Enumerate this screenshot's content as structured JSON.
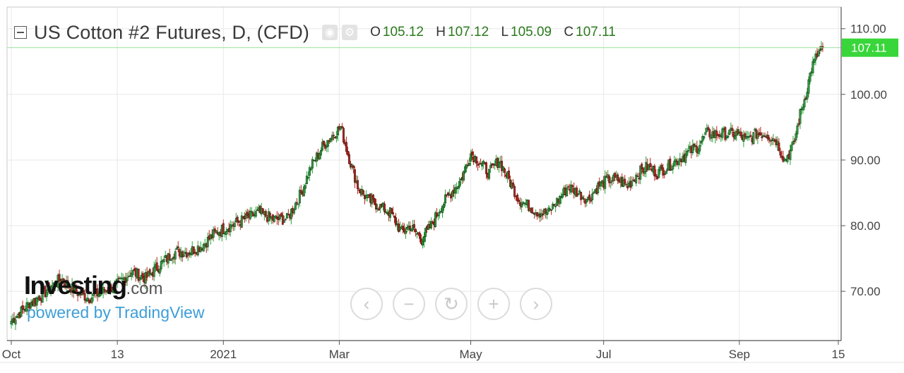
{
  "header": {
    "title": "US Cotton #2 Futures, D, (CFD)",
    "ohlc": {
      "o_label": "O",
      "o_value": "105.12",
      "h_label": "H",
      "h_value": "107.12",
      "l_label": "L",
      "l_value": "105.09",
      "c_label": "C",
      "c_value": "107.11"
    },
    "icons": [
      "eye-icon",
      "gear-icon"
    ]
  },
  "branding": {
    "logo_main": "Investing",
    "logo_domain": ".com",
    "powered_by": "powered by TradingView"
  },
  "navigation": {
    "buttons": [
      {
        "name": "scroll-left",
        "glyph": "‹"
      },
      {
        "name": "zoom-out",
        "glyph": "−"
      },
      {
        "name": "reset",
        "glyph": "↻"
      },
      {
        "name": "zoom-in",
        "glyph": "+"
      },
      {
        "name": "scroll-right",
        "glyph": "›"
      }
    ]
  },
  "colors": {
    "up": "#27a338",
    "down": "#b8211b",
    "last_price_bg": "#38d63a",
    "last_price_line": "#9be39b",
    "grid": "#e8e8e8"
  },
  "chart_data": {
    "type": "candlestick",
    "title": "US Cotton #2 Futures, D, (CFD)",
    "last_price": 107.11,
    "last_price_label": "107.11",
    "y_ticks": [
      {
        "value": 110,
        "label": "110.00"
      },
      {
        "value": 100,
        "label": "100.00"
      },
      {
        "value": 90,
        "label": "90.00"
      },
      {
        "value": 80,
        "label": "80.00"
      },
      {
        "value": 70,
        "label": "70.00"
      }
    ],
    "y_range": [
      62.5,
      113.3
    ],
    "x_ticks": [
      {
        "label": "Oct",
        "index": 0
      },
      {
        "label": "13",
        "index": 75
      },
      {
        "label": "2021",
        "index": 150
      },
      {
        "label": "Mar",
        "index": 232
      },
      {
        "label": "May",
        "index": 325
      },
      {
        "label": "Jul",
        "index": 419
      },
      {
        "label": "Sep",
        "index": 515
      },
      {
        "label": "15",
        "index": 585
      }
    ],
    "x_index_range": [
      -3,
      587
    ],
    "grid": true,
    "key_points": [
      [
        0,
        65.5
      ],
      [
        12,
        68
      ],
      [
        25,
        70
      ],
      [
        35,
        72
      ],
      [
        45,
        70
      ],
      [
        55,
        69
      ],
      [
        65,
        70
      ],
      [
        75,
        71
      ],
      [
        85,
        73
      ],
      [
        95,
        72
      ],
      [
        105,
        74
      ],
      [
        115,
        76
      ],
      [
        125,
        76
      ],
      [
        135,
        77
      ],
      [
        145,
        79
      ],
      [
        155,
        80
      ],
      [
        165,
        81
      ],
      [
        175,
        82
      ],
      [
        185,
        81
      ],
      [
        195,
        81
      ],
      [
        205,
        85
      ],
      [
        212,
        89
      ],
      [
        220,
        92
      ],
      [
        228,
        94
      ],
      [
        233,
        95
      ],
      [
        238,
        91
      ],
      [
        245,
        86
      ],
      [
        252,
        84
      ],
      [
        260,
        83
      ],
      [
        268,
        82
      ],
      [
        276,
        79
      ],
      [
        282,
        80
      ],
      [
        290,
        78
      ],
      [
        297,
        80
      ],
      [
        304,
        83
      ],
      [
        311,
        85
      ],
      [
        318,
        87
      ],
      [
        325,
        91
      ],
      [
        330,
        90
      ],
      [
        338,
        88
      ],
      [
        345,
        90
      ],
      [
        352,
        87
      ],
      [
        359,
        84
      ],
      [
        366,
        83
      ],
      [
        373,
        82
      ],
      [
        380,
        82
      ],
      [
        387,
        84
      ],
      [
        394,
        86
      ],
      [
        401,
        85
      ],
      [
        408,
        84
      ],
      [
        415,
        86
      ],
      [
        422,
        87
      ],
      [
        429,
        87
      ],
      [
        436,
        86
      ],
      [
        443,
        88
      ],
      [
        450,
        89
      ],
      [
        457,
        88
      ],
      [
        464,
        89
      ],
      [
        471,
        90
      ],
      [
        478,
        91
      ],
      [
        485,
        92
      ],
      [
        492,
        94
      ],
      [
        499,
        94
      ],
      [
        506,
        94
      ],
      [
        513,
        94
      ],
      [
        520,
        93
      ],
      [
        527,
        94
      ],
      [
        534,
        94
      ],
      [
        541,
        93
      ],
      [
        547,
        90
      ],
      [
        553,
        92
      ],
      [
        558,
        97
      ],
      [
        562,
        100
      ],
      [
        566,
        104
      ],
      [
        570,
        106
      ],
      [
        574,
        107.11
      ]
    ]
  }
}
